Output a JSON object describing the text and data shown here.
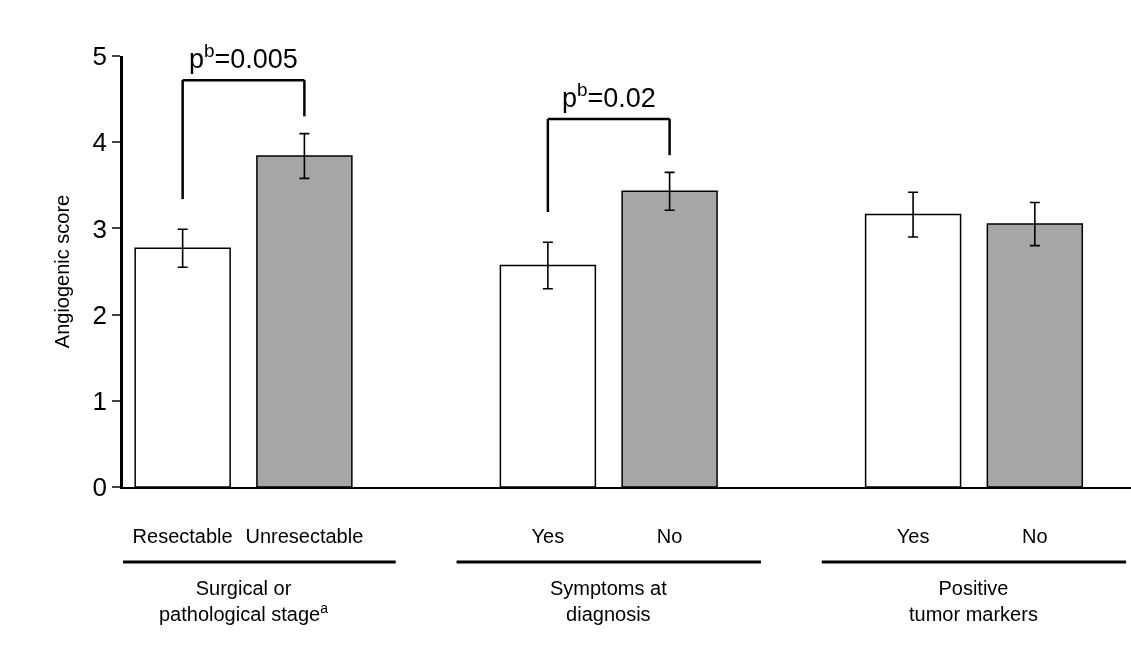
{
  "chart_data": {
    "type": "bar",
    "ylabel": "Angiogenic score",
    "categories": [
      "Resectable",
      "Unresectable",
      "Yes",
      "No",
      "Yes",
      "No"
    ],
    "values": [
      2.77,
      3.84,
      2.57,
      3.43,
      3.16,
      3.05
    ],
    "errors": [
      0.22,
      0.26,
      0.27,
      0.22,
      0.26,
      0.25
    ],
    "colors": [
      "#ffffff",
      "#a6a6a6",
      "#ffffff",
      "#a6a6a6",
      "#ffffff",
      "#a6a6a6"
    ],
    "ylim": [
      0,
      5
    ],
    "yticks": [
      0,
      1,
      2,
      3,
      4,
      5
    ],
    "legend": false,
    "annotations": [
      "p$^{b}$=0.005",
      "p$^{b}$=0.02",
      "Surgical or pathological stage$^{a}$",
      "Symptoms at diagnosis",
      "Positive tumor markers"
    ]
  }
}
